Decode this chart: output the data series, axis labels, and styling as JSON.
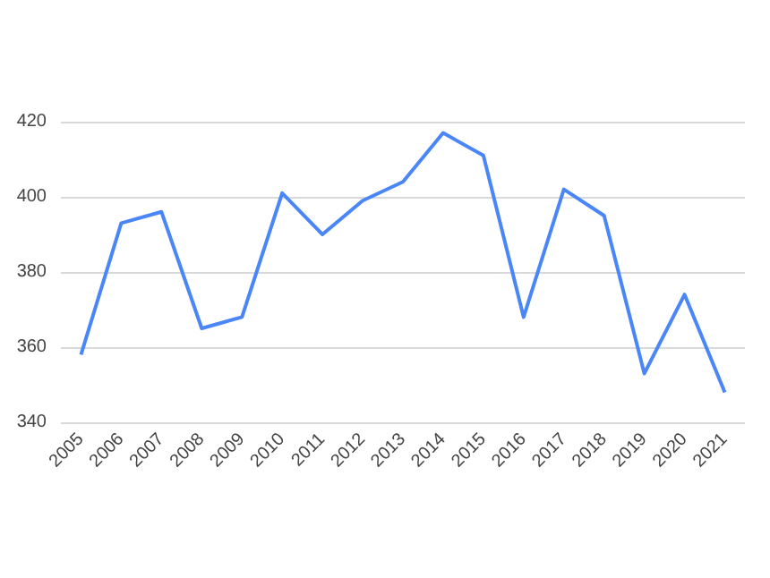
{
  "chart_data": {
    "type": "line",
    "categories": [
      "2005",
      "2006",
      "2007",
      "2008",
      "2009",
      "2010",
      "2011",
      "2012",
      "2013",
      "2014",
      "2015",
      "2016",
      "2017",
      "2018",
      "2019",
      "2020",
      "2021"
    ],
    "series": [
      {
        "color": "#4a86f7",
        "values": [
          358,
          393,
          396,
          365,
          368,
          401,
          390,
          399,
          404,
          417,
          411,
          368,
          402,
          395,
          353,
          374,
          348
        ]
      }
    ],
    "ylim": [
      340,
      420
    ],
    "yticks": [
      340,
      360,
      380,
      400,
      420
    ],
    "grid": "y",
    "marker": "none",
    "line_style": "solid"
  }
}
